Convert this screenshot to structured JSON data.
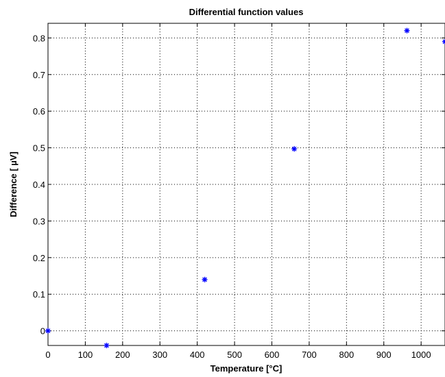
{
  "chart_data": {
    "type": "scatter",
    "title": "Differential function values",
    "xlabel": "Temperature [°C]",
    "ylabel": "Difference [ µV]",
    "xlim": [
      0,
      1064
    ],
    "ylim": [
      -0.04,
      0.84
    ],
    "xticks": [
      0,
      100,
      200,
      300,
      400,
      500,
      600,
      700,
      800,
      900,
      1000
    ],
    "yticks": [
      0,
      0.1,
      0.2,
      0.3,
      0.4,
      0.5,
      0.6,
      0.7,
      0.8
    ],
    "grid": true,
    "marker": "asterisk",
    "color": "#0000ff",
    "points": [
      {
        "x": 0,
        "y": 0.0
      },
      {
        "x": 157,
        "y": -0.04
      },
      {
        "x": 420,
        "y": 0.14
      },
      {
        "x": 660,
        "y": 0.497
      },
      {
        "x": 962,
        "y": 0.82
      },
      {
        "x": 1064,
        "y": 0.79
      }
    ]
  }
}
